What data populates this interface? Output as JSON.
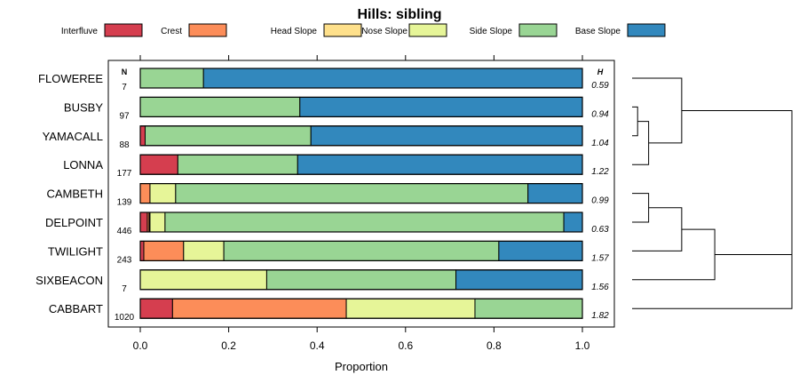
{
  "chart_data": {
    "type": "bar",
    "orientation": "horizontal-stacked",
    "title": "Hills: sibling",
    "xlabel": "Proportion",
    "xlim": [
      0,
      1
    ],
    "xticks": [
      "0.0",
      "0.2",
      "0.4",
      "0.6",
      "0.8",
      "1.0"
    ],
    "xtick_values": [
      0,
      0.2,
      0.4,
      0.6,
      0.8,
      1.0
    ],
    "n_header": "N",
    "h_header": "H",
    "legend": [
      {
        "name": "Interfluve",
        "color": "#d53e4f"
      },
      {
        "name": "Crest",
        "color": "#fc8d59"
      },
      {
        "name": "Head Slope",
        "color": "#fee08b"
      },
      {
        "name": "Nose Slope",
        "color": "#e6f598"
      },
      {
        "name": "Side Slope",
        "color": "#99d594"
      },
      {
        "name": "Base Slope",
        "color": "#3288bd"
      }
    ],
    "rows": [
      {
        "name": "FLOWEREE",
        "n": "7",
        "h": "0.59",
        "values": [
          0,
          0,
          0,
          0,
          0.143,
          0.857
        ]
      },
      {
        "name": "BUSBY",
        "n": "97",
        "h": "0.94",
        "values": [
          0,
          0,
          0,
          0,
          0.361,
          0.639
        ]
      },
      {
        "name": "YAMACALL",
        "n": "88",
        "h": "1.04",
        "values": [
          0.011,
          0,
          0,
          0,
          0.375,
          0.614
        ]
      },
      {
        "name": "LONNA",
        "n": "177",
        "h": "1.22",
        "values": [
          0.085,
          0,
          0,
          0,
          0.271,
          0.644
        ]
      },
      {
        "name": "CAMBETH",
        "n": "139",
        "h": "0.99",
        "values": [
          0,
          0.022,
          0,
          0.058,
          0.797,
          0.123
        ]
      },
      {
        "name": "DELPOINT",
        "n": "446",
        "h": "0.63",
        "values": [
          0.016,
          0.004,
          0.002,
          0.034,
          0.902,
          0.042
        ]
      },
      {
        "name": "TWILIGHT",
        "n": "243",
        "h": "1.57",
        "values": [
          0.008,
          0.09,
          0,
          0.091,
          0.622,
          0.189
        ]
      },
      {
        "name": "SIXBEACON",
        "n": "7",
        "h": "1.56",
        "values": [
          0,
          0,
          0,
          0.286,
          0.428,
          0.286
        ]
      },
      {
        "name": "CABBART",
        "n": "1020",
        "h": "1.82",
        "values": [
          0.073,
          0.393,
          0,
          0.291,
          0.243,
          0
        ]
      }
    ],
    "dendrogram": {
      "merges": [
        {
          "left": "BUSBY",
          "right": "YAMACALL",
          "height": 0.05
        },
        {
          "left": "m0",
          "right": "LONNA",
          "height": 0.15
        },
        {
          "left": "FLOWEREE",
          "right": "m1",
          "height": 0.45
        },
        {
          "left": "CAMBETH",
          "right": "DELPOINT",
          "height": 0.15
        },
        {
          "left": "m3",
          "right": "TWILIGHT",
          "height": 0.45
        },
        {
          "left": "m4",
          "right": "SIXBEACON",
          "height": 0.75
        },
        {
          "left": "m2",
          "right": "m5",
          "height": 1.45
        },
        {
          "left": "m6",
          "right": "CABBART",
          "height": 1.45
        }
      ]
    }
  }
}
